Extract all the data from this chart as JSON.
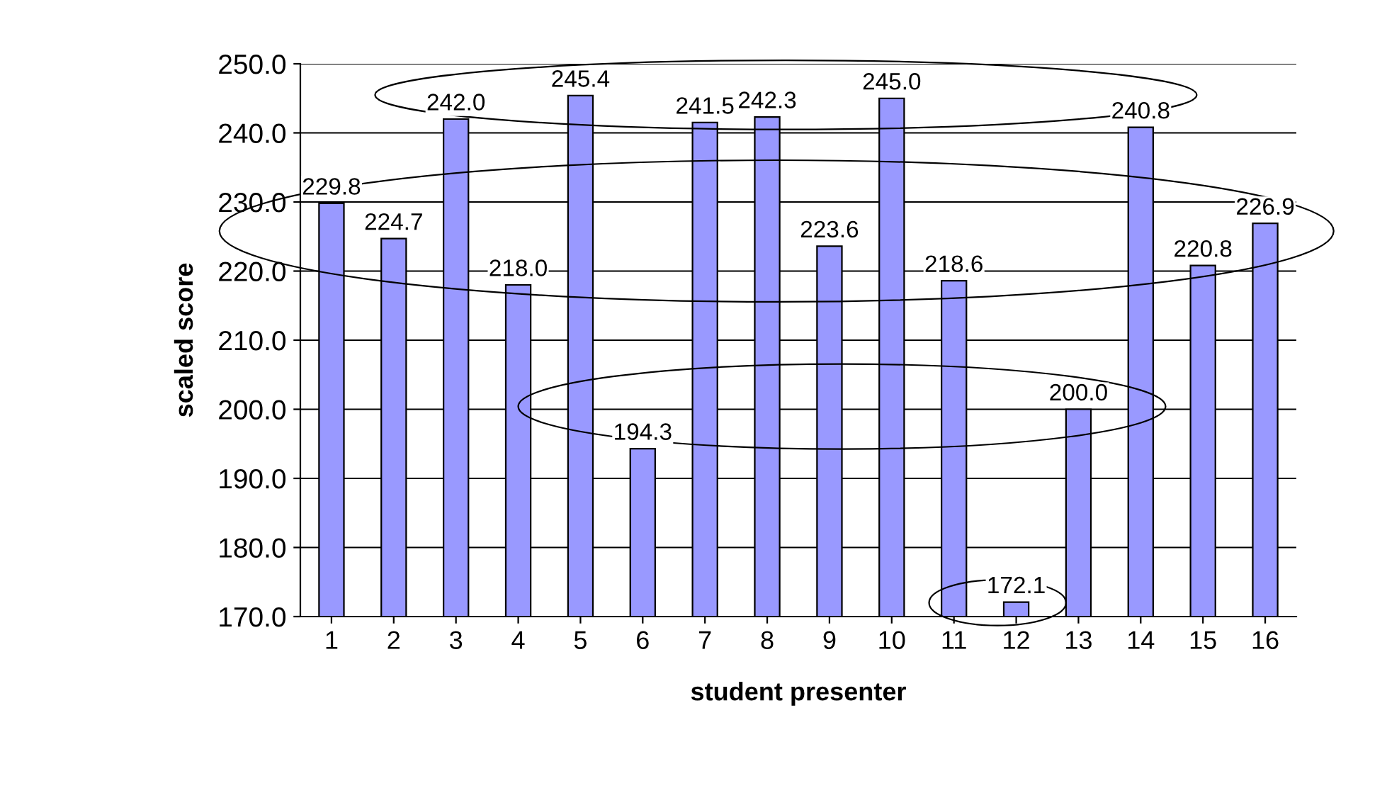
{
  "chart_data": {
    "type": "bar",
    "xlabel": "student presenter",
    "ylabel": "scaled score",
    "categories": [
      "1",
      "2",
      "3",
      "4",
      "5",
      "6",
      "7",
      "8",
      "9",
      "10",
      "11",
      "12",
      "13",
      "14",
      "15",
      "16"
    ],
    "values": [
      229.8,
      224.7,
      242.0,
      218.0,
      245.4,
      194.3,
      241.5,
      242.3,
      223.6,
      245.0,
      218.6,
      172.1,
      200.0,
      240.8,
      220.8,
      226.9
    ],
    "value_labels": [
      "229.8",
      "224.7",
      "242.0",
      "218.0",
      "245.4",
      "194.3",
      "241.5",
      "242.3",
      "223.6",
      "245.0",
      "218.6",
      "172.1",
      "200.0",
      "240.8",
      "220.8",
      "226.9"
    ],
    "color": "#9999ff",
    "ylim": [
      170,
      250
    ],
    "yticks": [
      {
        "value": 170,
        "label": "170.0"
      },
      {
        "value": 180,
        "label": "180.0"
      },
      {
        "value": 190,
        "label": "190.0"
      },
      {
        "value": 200,
        "label": "200.0"
      },
      {
        "value": 210,
        "label": "210.0"
      },
      {
        "value": 220,
        "label": "220.0"
      },
      {
        "value": 230,
        "label": "230.0"
      },
      {
        "value": 240,
        "label": "240.0"
      },
      {
        "value": 250,
        "label": "250.0"
      }
    ],
    "grid": "y",
    "legend": false
  }
}
